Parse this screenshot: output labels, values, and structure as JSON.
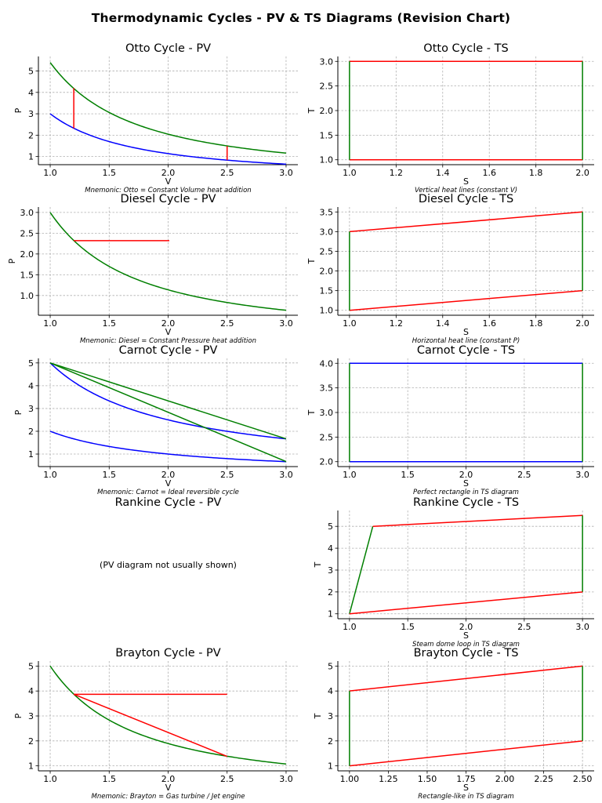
{
  "figure_title": "Thermodynamic Cycles - PV & TS Diagrams (Revision Chart)",
  "colors": {
    "red": "#ff0000",
    "green": "#007f00",
    "blue": "#0000ff",
    "grid": "#b0b0b0",
    "axis": "#000000"
  },
  "chart_data": [
    {
      "id": "otto-pv",
      "type": "line",
      "title": "Otto Cycle - PV",
      "xlabel": "V",
      "ylabel": "P",
      "xlim": [
        0.9,
        3.1
      ],
      "ylim": [
        0.62,
        5.68
      ],
      "xticks": [
        1.0,
        1.5,
        2.0,
        2.5,
        3.0
      ],
      "xtick_labels": [
        "1.0",
        "1.5",
        "2.0",
        "2.5",
        "3.0"
      ],
      "yticks": [
        1,
        2,
        3,
        4,
        5
      ],
      "ytick_labels": [
        "1",
        "2",
        "3",
        "4",
        "5"
      ],
      "grid": true,
      "series": [
        {
          "color": "#007f00",
          "kind": "isentrope",
          "k": 5.4,
          "exp": 1.4,
          "x_range": [
            1.0,
            3.0
          ]
        },
        {
          "color": "#0000ff",
          "kind": "isentrope",
          "k": 3.0,
          "exp": 1.4,
          "x_range": [
            1.0,
            3.0
          ]
        },
        {
          "color": "#ff0000",
          "kind": "segment",
          "x": [
            1.2,
            1.2
          ],
          "y": [
            2.32,
            4.2
          ]
        },
        {
          "color": "#ff0000",
          "kind": "segment",
          "x": [
            2.5,
            2.5
          ],
          "y": [
            0.83,
            1.49
          ]
        }
      ],
      "annotation": "Mnemonic: Otto = Constant Volume heat addition"
    },
    {
      "id": "otto-ts",
      "type": "line",
      "title": "Otto Cycle - TS",
      "xlabel": "S",
      "ylabel": "T",
      "xlim": [
        0.95,
        2.05
      ],
      "ylim": [
        0.9,
        3.1
      ],
      "xticks": [
        1.0,
        1.2,
        1.4,
        1.6,
        1.8,
        2.0
      ],
      "xtick_labels": [
        "1.0",
        "1.2",
        "1.4",
        "1.6",
        "1.8",
        "2.0"
      ],
      "yticks": [
        1.0,
        1.5,
        2.0,
        2.5,
        3.0
      ],
      "ytick_labels": [
        "1.0",
        "1.5",
        "2.0",
        "2.5",
        "3.0"
      ],
      "grid": true,
      "series": [
        {
          "color": "#ff0000",
          "kind": "segment",
          "x": [
            1.0,
            2.0
          ],
          "y": [
            1.0,
            1.0
          ]
        },
        {
          "color": "#ff0000",
          "kind": "segment",
          "x": [
            1.0,
            2.0
          ],
          "y": [
            3.0,
            3.0
          ]
        },
        {
          "color": "#007f00",
          "kind": "segment",
          "x": [
            1.0,
            1.0
          ],
          "y": [
            1.0,
            3.0
          ]
        },
        {
          "color": "#007f00",
          "kind": "segment",
          "x": [
            2.0,
            2.0
          ],
          "y": [
            1.0,
            3.0
          ]
        }
      ],
      "annotation": "Vertical heat lines (constant V)"
    },
    {
      "id": "diesel-pv",
      "type": "line",
      "title": "Diesel Cycle - PV",
      "xlabel": "V",
      "ylabel": "P",
      "xlim": [
        0.9,
        3.1
      ],
      "ylim": [
        0.525,
        3.13
      ],
      "xticks": [
        1.0,
        1.5,
        2.0,
        2.5,
        3.0
      ],
      "xtick_labels": [
        "1.0",
        "1.5",
        "2.0",
        "2.5",
        "3.0"
      ],
      "yticks": [
        1.0,
        1.5,
        2.0,
        2.5,
        3.0
      ],
      "ytick_labels": [
        "1.0",
        "1.5",
        "2.0",
        "2.5",
        "3.0"
      ],
      "grid": true,
      "series": [
        {
          "color": "#007f00",
          "kind": "isentrope",
          "k": 3.0,
          "exp": 1.4,
          "x_range": [
            1.0,
            3.0
          ]
        },
        {
          "color": "#ff0000",
          "kind": "segment",
          "x": [
            1.2,
            2.01
          ],
          "y": [
            2.32,
            2.32
          ]
        }
      ],
      "annotation": "Mnemonic: Diesel = Constant Pressure heat addition"
    },
    {
      "id": "diesel-ts",
      "type": "line",
      "title": "Diesel Cycle - TS",
      "xlabel": "S",
      "ylabel": "T",
      "xlim": [
        0.95,
        2.05
      ],
      "ylim": [
        0.875,
        3.625
      ],
      "xticks": [
        1.0,
        1.2,
        1.4,
        1.6,
        1.8,
        2.0
      ],
      "xtick_labels": [
        "1.0",
        "1.2",
        "1.4",
        "1.6",
        "1.8",
        "2.0"
      ],
      "yticks": [
        1.0,
        1.5,
        2.0,
        2.5,
        3.0,
        3.5
      ],
      "ytick_labels": [
        "1.0",
        "1.5",
        "2.0",
        "2.5",
        "3.0",
        "3.5"
      ],
      "grid": true,
      "series": [
        {
          "color": "#ff0000",
          "kind": "segment",
          "x": [
            1.0,
            2.0
          ],
          "y": [
            1.0,
            1.5
          ]
        },
        {
          "color": "#ff0000",
          "kind": "segment",
          "x": [
            1.0,
            2.0
          ],
          "y": [
            3.0,
            3.5
          ]
        },
        {
          "color": "#007f00",
          "kind": "segment",
          "x": [
            1.0,
            1.0
          ],
          "y": [
            1.0,
            3.0
          ]
        },
        {
          "color": "#007f00",
          "kind": "segment",
          "x": [
            2.0,
            2.0
          ],
          "y": [
            1.5,
            3.5
          ]
        }
      ],
      "annotation": "Horizontal heat line (constant P)"
    },
    {
      "id": "carnot-pv",
      "type": "line",
      "title": "Carnot Cycle - PV",
      "xlabel": "V",
      "ylabel": "P",
      "xlim": [
        0.9,
        3.1
      ],
      "ylim": [
        0.45,
        5.2
      ],
      "xticks": [
        1.0,
        1.5,
        2.0,
        2.5,
        3.0
      ],
      "xtick_labels": [
        "1.0",
        "1.5",
        "2.0",
        "2.5",
        "3.0"
      ],
      "yticks": [
        1,
        2,
        3,
        4,
        5
      ],
      "ytick_labels": [
        "1",
        "2",
        "3",
        "4",
        "5"
      ],
      "grid": true,
      "series": [
        {
          "color": "#0000ff",
          "kind": "isotherm",
          "k": 5.0,
          "x_range": [
            1.0,
            3.0
          ]
        },
        {
          "color": "#0000ff",
          "kind": "isotherm",
          "k": 2.0,
          "x_range": [
            1.0,
            3.0
          ]
        },
        {
          "color": "#007f00",
          "kind": "segment",
          "x": [
            1.0,
            3.0
          ],
          "y": [
            5.0,
            1.67
          ]
        },
        {
          "color": "#007f00",
          "kind": "segment",
          "x": [
            1.0,
            3.0
          ],
          "y": [
            5.0,
            0.67
          ]
        }
      ],
      "annotation": "Mnemonic: Carnot = Ideal reversible cycle"
    },
    {
      "id": "carnot-ts",
      "type": "line",
      "title": "Carnot Cycle - TS",
      "xlabel": "S",
      "ylabel": "T",
      "xlim": [
        0.9,
        3.1
      ],
      "ylim": [
        1.9,
        4.1
      ],
      "xticks": [
        1.0,
        1.5,
        2.0,
        2.5,
        3.0
      ],
      "xtick_labels": [
        "1.0",
        "1.5",
        "2.0",
        "2.5",
        "3.0"
      ],
      "yticks": [
        2.0,
        2.5,
        3.0,
        3.5,
        4.0
      ],
      "ytick_labels": [
        "2.0",
        "2.5",
        "3.0",
        "3.5",
        "4.0"
      ],
      "grid": true,
      "series": [
        {
          "color": "#0000ff",
          "kind": "segment",
          "x": [
            1.0,
            3.0
          ],
          "y": [
            2.0,
            2.0
          ]
        },
        {
          "color": "#0000ff",
          "kind": "segment",
          "x": [
            1.0,
            3.0
          ],
          "y": [
            4.0,
            4.0
          ]
        },
        {
          "color": "#007f00",
          "kind": "segment",
          "x": [
            1.0,
            1.0
          ],
          "y": [
            2.0,
            4.0
          ]
        },
        {
          "color": "#007f00",
          "kind": "segment",
          "x": [
            3.0,
            3.0
          ],
          "y": [
            2.0,
            4.0
          ]
        }
      ],
      "annotation": "Perfect rectangle in TS diagram"
    },
    {
      "id": "rankine-pv",
      "type": "text",
      "title": "Rankine Cycle - PV",
      "placeholder": "(PV diagram not usually shown)"
    },
    {
      "id": "rankine-ts",
      "type": "line",
      "title": "Rankine Cycle - TS",
      "xlabel": "S",
      "ylabel": "T",
      "xlim": [
        0.9,
        3.1
      ],
      "ylim": [
        0.775,
        5.725
      ],
      "xticks": [
        1.0,
        1.5,
        2.0,
        2.5,
        3.0
      ],
      "xtick_labels": [
        "1.0",
        "1.5",
        "2.0",
        "2.5",
        "3.0"
      ],
      "yticks": [
        1,
        2,
        3,
        4,
        5
      ],
      "ytick_labels": [
        "1",
        "2",
        "3",
        "4",
        "5"
      ],
      "grid": true,
      "series": [
        {
          "color": "#007f00",
          "kind": "segment",
          "x": [
            1.0,
            1.2
          ],
          "y": [
            1.0,
            5.0
          ]
        },
        {
          "color": "#ff0000",
          "kind": "segment",
          "x": [
            1.2,
            3.0
          ],
          "y": [
            5.0,
            5.5
          ]
        },
        {
          "color": "#007f00",
          "kind": "segment",
          "x": [
            3.0,
            3.0
          ],
          "y": [
            5.5,
            2.0
          ]
        },
        {
          "color": "#ff0000",
          "kind": "segment",
          "x": [
            3.0,
            1.0
          ],
          "y": [
            2.0,
            1.0
          ]
        }
      ],
      "annotation": "Steam dome loop in TS diagram"
    },
    {
      "id": "brayton-pv",
      "type": "line",
      "title": "Brayton Cycle - PV",
      "xlabel": "V",
      "ylabel": "P",
      "xlim": [
        0.9,
        3.1
      ],
      "ylim": [
        0.8,
        5.2
      ],
      "xticks": [
        1.0,
        1.5,
        2.0,
        2.5,
        3.0
      ],
      "xtick_labels": [
        "1.0",
        "1.5",
        "2.0",
        "2.5",
        "3.0"
      ],
      "yticks": [
        1,
        2,
        3,
        4,
        5
      ],
      "ytick_labels": [
        "1",
        "2",
        "3",
        "4",
        "5"
      ],
      "grid": true,
      "series": [
        {
          "color": "#007f00",
          "kind": "isentrope",
          "k": 5.0,
          "exp": 1.4,
          "x_range": [
            1.0,
            3.0
          ]
        },
        {
          "color": "#ff0000",
          "kind": "segment",
          "x": [
            1.2,
            2.5
          ],
          "y": [
            3.87,
            3.87
          ]
        },
        {
          "color": "#ff0000",
          "kind": "segment",
          "x": [
            1.2,
            2.5
          ],
          "y": [
            3.87,
            1.38
          ]
        }
      ],
      "annotation": "Mnemonic: Brayton = Gas turbine / Jet engine"
    },
    {
      "id": "brayton-ts",
      "type": "line",
      "title": "Brayton Cycle - TS",
      "xlabel": "S",
      "ylabel": "T",
      "xlim": [
        0.925,
        2.575
      ],
      "ylim": [
        0.8,
        5.2
      ],
      "xticks": [
        1.0,
        1.25,
        1.5,
        1.75,
        2.0,
        2.25,
        2.5
      ],
      "xtick_labels": [
        "1.00",
        "1.25",
        "1.50",
        "1.75",
        "2.00",
        "2.25",
        "2.50"
      ],
      "yticks": [
        1,
        2,
        3,
        4,
        5
      ],
      "ytick_labels": [
        "1",
        "2",
        "3",
        "4",
        "5"
      ],
      "grid": true,
      "series": [
        {
          "color": "#ff0000",
          "kind": "segment",
          "x": [
            1.0,
            2.5
          ],
          "y": [
            1.0,
            2.0
          ]
        },
        {
          "color": "#ff0000",
          "kind": "segment",
          "x": [
            1.0,
            2.5
          ],
          "y": [
            4.0,
            5.0
          ]
        },
        {
          "color": "#007f00",
          "kind": "segment",
          "x": [
            1.0,
            1.0
          ],
          "y": [
            1.0,
            4.0
          ]
        },
        {
          "color": "#007f00",
          "kind": "segment",
          "x": [
            2.5,
            2.5
          ],
          "y": [
            2.0,
            5.0
          ]
        }
      ],
      "annotation": "Rectangle-like in TS diagram"
    }
  ]
}
